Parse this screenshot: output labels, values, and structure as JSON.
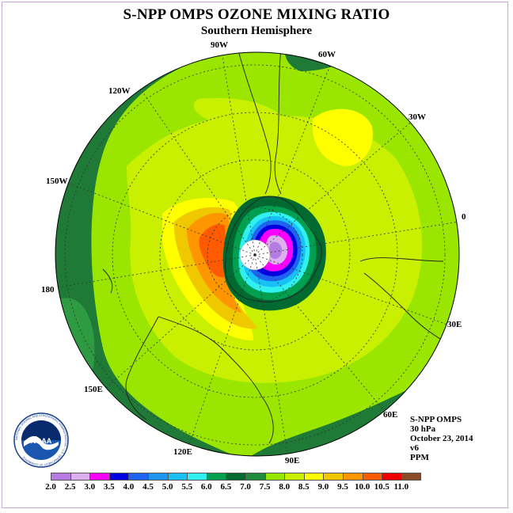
{
  "title": "S-NPP OMPS OZONE MIXING RATIO",
  "subtitle": "Southern Hemisphere",
  "longitude_labels": {
    "lon_90w": "90W",
    "lon_60w": "60W",
    "lon_120w": "120W",
    "lon_30w": "30W",
    "lon_150w": "150W",
    "lon_0": "0",
    "lon_180": "180",
    "lon_30e": "30E",
    "lon_150e": "150E",
    "lon_60e": "60E",
    "lon_120e": "120E",
    "lon_90e": "90E"
  },
  "info": {
    "instrument": "S-NPP OMPS",
    "level": "30 hPa",
    "date": "October 23, 2014",
    "version": "v6",
    "units": "PPM"
  },
  "colorbar": {
    "ticks": [
      "2.0",
      "2.5",
      "3.0",
      "3.5",
      "4.0",
      "4.5",
      "5.0",
      "5.5",
      "6.0",
      "6.5",
      "7.0",
      "7.5",
      "8.0",
      "8.5",
      "9.0",
      "9.5",
      "10.0",
      "10.5",
      "11.0"
    ],
    "colors": [
      "#b57be0",
      "#dcb0ee",
      "#ff00ff",
      "#0000e0",
      "#1e64f0",
      "#1e96f0",
      "#18c0f5",
      "#30f0f0",
      "#00a050",
      "#006a30",
      "#1e8c3c",
      "#96e600",
      "#c8f000",
      "#ffff00",
      "#f0c800",
      "#ff9600",
      "#ff5a00",
      "#f00000",
      "#8a4a28"
    ]
  },
  "logo": {
    "text": "NOAA",
    "ring_text": "NATIONAL OCEANIC AND ATMOSPHERIC ADMINISTRATION · U.S. DEPARTMENT OF COMMERCE"
  },
  "colors": {
    "dark_green": "#1e6e32",
    "green": "#2e9a42",
    "lime": "#9ae600",
    "yellow_green": "#c8f000",
    "yellow": "#ffff00",
    "orange": "#f0a000",
    "dark_orange": "#ff6400"
  }
}
